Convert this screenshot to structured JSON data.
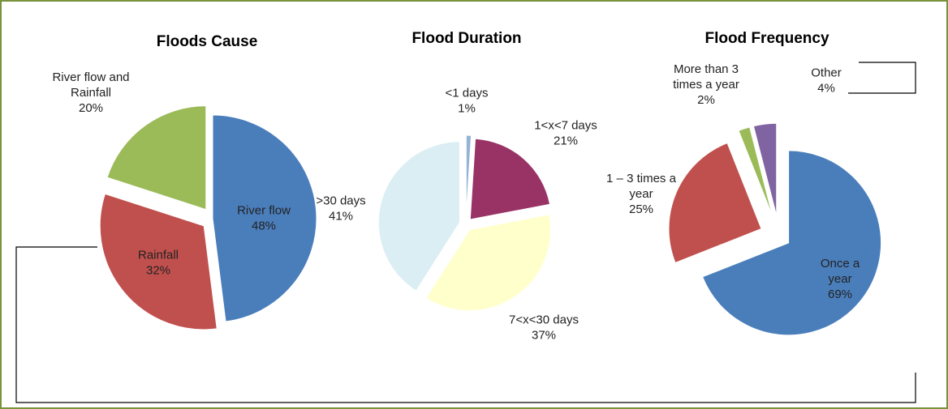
{
  "chart_data": [
    {
      "type": "pie",
      "title": "Floods Cause",
      "categories": [
        "River flow",
        "Rainfall",
        "River flow and Rainfall"
      ],
      "values": [
        48,
        32,
        20
      ],
      "value_labels": [
        "48%",
        "32%",
        "20%"
      ],
      "colors": [
        "#4a7ebb",
        "#c0504d",
        "#9bbb59"
      ]
    },
    {
      "type": "pie",
      "title": "Flood Duration",
      "categories": [
        "<1 days",
        "1<x<7 days",
        "7<x<30 days",
        ">30 days"
      ],
      "values": [
        1,
        21,
        37,
        41
      ],
      "value_labels": [
        "1%",
        "21%",
        "37%",
        "41%"
      ],
      "colors": [
        "#95b3d7",
        "#993366",
        "#ffffcc",
        "#daeef3"
      ]
    },
    {
      "type": "pie",
      "title": "Flood Frequency",
      "categories": [
        "Once a year",
        "1 – 3 times a year",
        "More than 3 times a year",
        "Other"
      ],
      "values": [
        69,
        25,
        2,
        4
      ],
      "value_labels": [
        "69%",
        "25%",
        "2%",
        "4%"
      ],
      "colors": [
        "#4a7ebb",
        "#c0504d",
        "#9bbb59",
        "#8064a2"
      ]
    }
  ]
}
